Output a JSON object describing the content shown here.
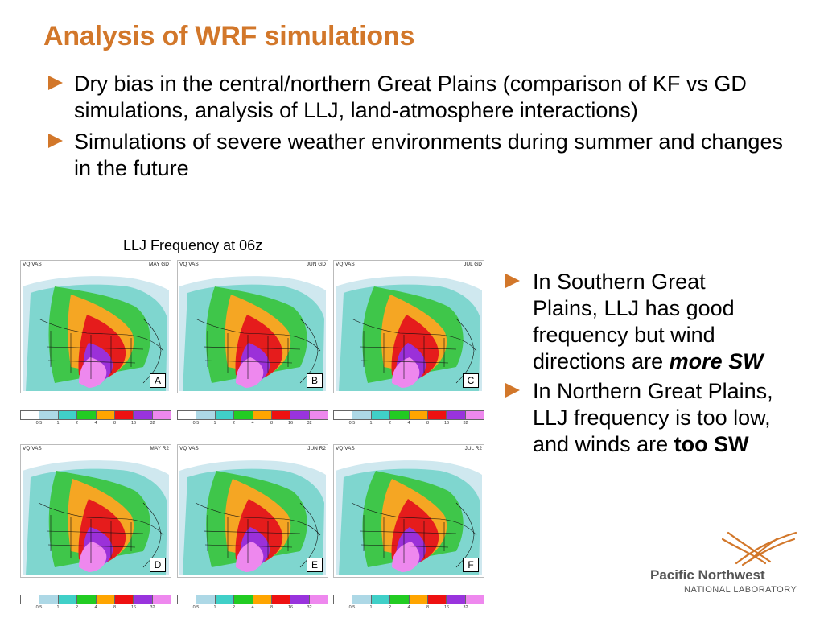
{
  "slide": {
    "title": "Analysis of WRF simulations",
    "bullets": [
      "Dry bias in the central/northern Great Plains (comparison of KF vs GD simulations, analysis of LLJ, land-atmosphere interactions)",
      "Simulations of severe weather environments during summer and changes in the future"
    ],
    "figure_caption": "LLJ Frequency at 06z",
    "side_bullets": [
      {
        "text": "In Southern Great Plains, LLJ has good frequency but wind directions are ",
        "emphasis": "more SW"
      },
      {
        "text": "In Northern Great Plains, LLJ frequency is too low, and winds are ",
        "emphasis": "too SW"
      }
    ]
  },
  "panels": [
    {
      "left_label": "VQ VAS",
      "right_label": "MAY GD",
      "letter": "A"
    },
    {
      "left_label": "VQ VAS",
      "right_label": "JUN GD",
      "letter": "B"
    },
    {
      "left_label": "VQ VAS",
      "right_label": "JUL GD",
      "letter": "C"
    },
    {
      "left_label": "VQ VAS",
      "right_label": "MAY R2",
      "letter": "D"
    },
    {
      "left_label": "VQ VAS",
      "right_label": "JUN R2",
      "letter": "E"
    },
    {
      "left_label": "VQ VAS",
      "right_label": "JUL R2",
      "letter": "F"
    }
  ],
  "colorbar": {
    "colors": [
      "#ffffff",
      "#add8e6",
      "#40d0c8",
      "#22cc22",
      "#ffa500",
      "#ee1111",
      "#9933dd",
      "#ee88ee"
    ],
    "ticks": [
      "0.5",
      "1",
      "2",
      "4",
      "8",
      "16",
      "32"
    ]
  },
  "logo": {
    "name": "Pacific Northwest",
    "subtitle": "NATIONAL LABORATORY",
    "accent": "#d2772a"
  },
  "colors": {
    "title": "#d2772a",
    "arrow": "#d2772a"
  }
}
